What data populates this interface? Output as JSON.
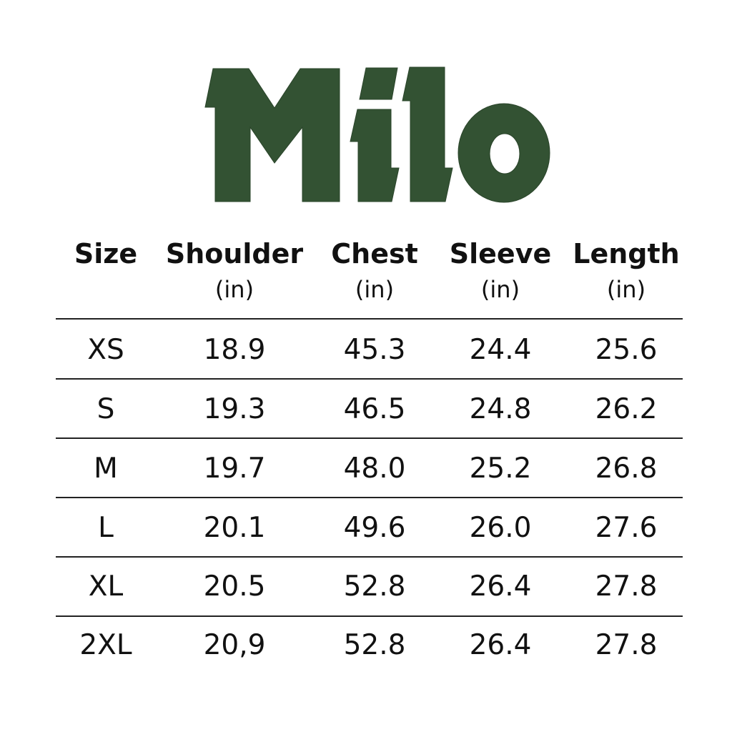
{
  "brand": {
    "logo_text": "Milo",
    "color": "#335233"
  },
  "table": {
    "headers": [
      {
        "label": "Size",
        "unit": ""
      },
      {
        "label": "Shoulder",
        "unit": "(in)"
      },
      {
        "label": "Chest",
        "unit": "(in)"
      },
      {
        "label": "Sleeve",
        "unit": "(in)"
      },
      {
        "label": "Length",
        "unit": "(in)"
      }
    ],
    "rows": [
      [
        "XS",
        "18.9",
        "45.3",
        "24.4",
        "25.6"
      ],
      [
        "S",
        "19.3",
        "46.5",
        "24.8",
        "26.2"
      ],
      [
        "M",
        "19.7",
        "48.0",
        "25.2",
        "26.8"
      ],
      [
        "L",
        "20.1",
        "49.6",
        "26.0",
        "27.6"
      ],
      [
        "XL",
        "20.5",
        "52.8",
        "26.4",
        "27.8"
      ],
      [
        "2XL",
        "20,9",
        "52.8",
        "26.4",
        "27.8"
      ]
    ]
  }
}
